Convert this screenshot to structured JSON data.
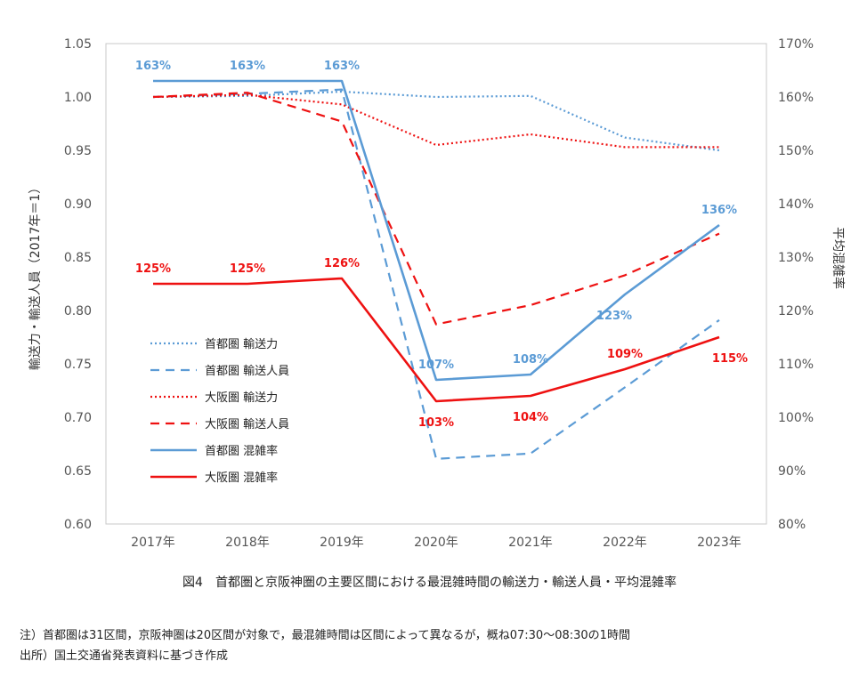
{
  "chart_data": {
    "type": "line",
    "categories": [
      "2017年",
      "2018年",
      "2019年",
      "2020年",
      "2021年",
      "2022年",
      "2023年"
    ],
    "ylabel_left": "輸送力・輸送人員（2017年＝1）",
    "ylabel_right": "平均混雑率",
    "ylim_left": [
      0.6,
      1.05
    ],
    "ylim_right": [
      80,
      170
    ],
    "yticks_left": [
      "0.60",
      "0.65",
      "0.70",
      "0.75",
      "0.80",
      "0.85",
      "0.90",
      "0.95",
      "1.00",
      "1.05"
    ],
    "yticks_right": [
      "80%",
      "90%",
      "100%",
      "110%",
      "120%",
      "130%",
      "140%",
      "150%",
      "160%",
      "170%"
    ],
    "grid": false,
    "legend_position": "left-inside",
    "series": [
      {
        "name": "首都圏 輸送力",
        "axis": "left",
        "color": "#5b9bd5",
        "style": "dotted",
        "values": [
          1.0,
          1.001,
          1.005,
          1.0,
          1.001,
          0.962,
          0.95
        ]
      },
      {
        "name": "首都圏 輸送人員",
        "axis": "left",
        "color": "#5b9bd5",
        "style": "dashed",
        "values": [
          1.0,
          1.003,
          1.007,
          0.661,
          0.666,
          0.728,
          0.791
        ]
      },
      {
        "name": "大阪圏 輸送力",
        "axis": "left",
        "color": "#ee1111",
        "style": "dotted",
        "values": [
          1.0,
          1.002,
          0.993,
          0.955,
          0.965,
          0.953,
          0.953
        ]
      },
      {
        "name": "大阪圏 輸送人員",
        "axis": "left",
        "color": "#ee1111",
        "style": "dashed",
        "values": [
          1.0,
          1.004,
          0.977,
          0.787,
          0.805,
          0.833,
          0.872
        ]
      },
      {
        "name": "首都圏 混雑率",
        "axis": "right",
        "color": "#5b9bd5",
        "style": "solid",
        "values": [
          163,
          163,
          163,
          107,
          108,
          123,
          136
        ],
        "labels": [
          "163%",
          "163%",
          "163%",
          "107%",
          "108%",
          "123%",
          "136%"
        ]
      },
      {
        "name": "大阪圏 混雑率",
        "axis": "right",
        "color": "#ee1111",
        "style": "solid",
        "values": [
          125,
          125,
          126,
          103,
          104,
          109,
          115
        ],
        "labels": [
          "125%",
          "125%",
          "126%",
          "103%",
          "104%",
          "109%",
          "115%"
        ]
      }
    ]
  },
  "caption": "図4　首都圏と京阪神圏の主要区間における最混雑時間の輸送力・輸送人員・平均混雑率",
  "notes": [
    "注）首都圏は31区間，京阪神圏は20区間が対象で，最混雑時間は区間によって異なるが，概ね07:30～08:30の1時間",
    "出所）国土交通省発表資料に基づき作成"
  ]
}
